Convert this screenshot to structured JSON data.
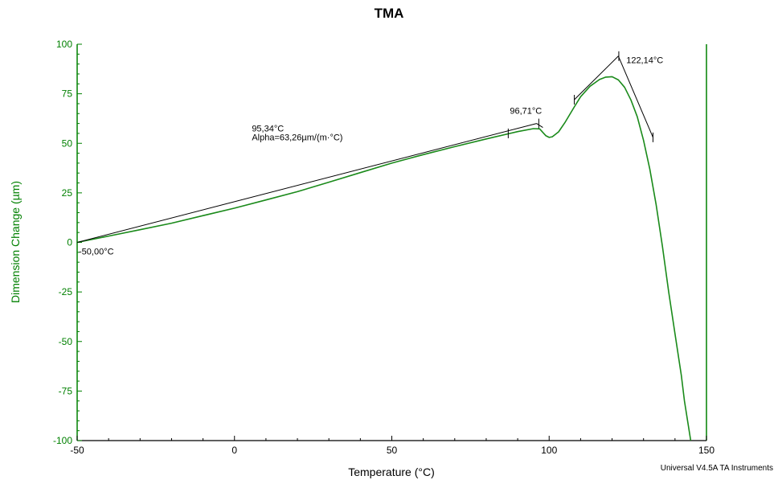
{
  "chart_data": {
    "type": "line",
    "title": "TMA",
    "xlabel": "Temperature (°C)",
    "ylabel": "Dimension Change (µm)",
    "xlim": [
      -50,
      150
    ],
    "ylim": [
      -100,
      100
    ],
    "x_ticks": [
      -50,
      0,
      50,
      100,
      150
    ],
    "y_ticks": [
      100,
      75,
      50,
      25,
      0,
      -25,
      -50,
      -75,
      -100
    ],
    "y_axis_color": "#008000",
    "footer": "Universal V4.5A TA Instruments",
    "series": [
      {
        "color": "#1a8a1a",
        "x": [
          -50,
          -40,
          -30,
          -20,
          -10,
          0,
          10,
          20,
          30,
          40,
          50,
          60,
          70,
          80,
          90,
          95,
          97,
          98,
          99,
          100,
          101,
          103,
          105,
          108,
          110,
          113,
          116,
          118,
          120,
          122,
          124,
          126,
          128,
          130,
          132,
          134,
          136,
          138,
          140,
          142,
          143,
          144,
          145
        ],
        "y": [
          0,
          3.2,
          6.4,
          9.7,
          13.5,
          17.3,
          21.4,
          25.6,
          30.4,
          35.2,
          40,
          44.3,
          48.3,
          52.2,
          55.9,
          57.4,
          57.3,
          55.5,
          53.8,
          53.0,
          53.3,
          55.8,
          60.4,
          68.4,
          73.5,
          78.8,
          82.2,
          83.4,
          83.6,
          82.0,
          78.2,
          71.9,
          63.4,
          51.5,
          37.0,
          19.0,
          -2.0,
          -25.0,
          -46.0,
          -67.0,
          -80.0,
          -90.0,
          -100.0
        ]
      }
    ],
    "annotations": [
      {
        "text": "-50,00°C",
        "x": -50,
        "y": 0
      },
      {
        "text": "95,34°C",
        "x": 5,
        "y": 56
      },
      {
        "text": "Alpha=63,26µm/(m·°C)",
        "x": 5,
        "y": 51.5
      },
      {
        "text": "96,71°C",
        "x": 87,
        "y": 65
      },
      {
        "text": "122,14°C",
        "x": 124,
        "y": 90.5
      }
    ],
    "analysis_lines": [
      {
        "x1": -50,
        "y1": 0,
        "x2": 96,
        "y2": 60
      },
      {
        "x1": 96,
        "y1": 60,
        "x2": 98,
        "y2": 58
      },
      {
        "x1": 108,
        "y1": 72,
        "x2": 122,
        "y2": 94
      },
      {
        "x1": 122,
        "y1": 94,
        "x2": 133,
        "y2": 53
      }
    ],
    "analysis_markers": [
      {
        "x": 87,
        "y": 55
      },
      {
        "x": 96.71,
        "y": 60
      },
      {
        "x": 108,
        "y": 72
      },
      {
        "x": 122.14,
        "y": 94
      },
      {
        "x": 133,
        "y": 53
      }
    ]
  }
}
